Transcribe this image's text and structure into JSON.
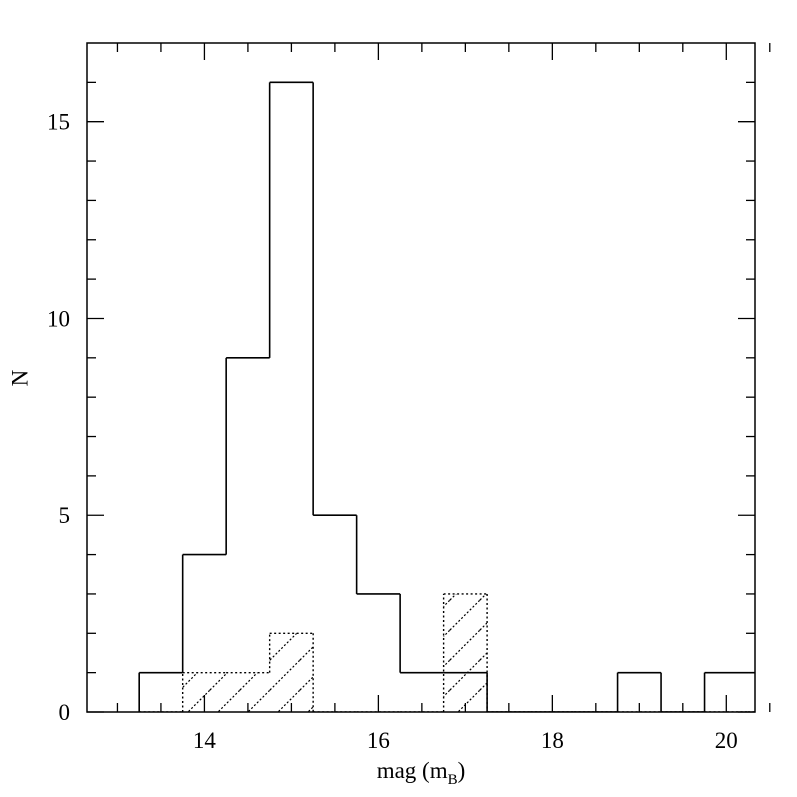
{
  "chart_data": {
    "type": "histogram",
    "xlabel": {
      "text": "mag (m",
      "subscript": "B",
      "suffix": ")"
    },
    "ylabel": "N",
    "bins": [
      13.25,
      13.75,
      14.25,
      14.75,
      15.25,
      15.75,
      16.25,
      16.75,
      17.25,
      17.75,
      18.25,
      18.75,
      19.25,
      19.75,
      20.25,
      20.75
    ],
    "series": [
      {
        "color": "#000000",
        "hatch": false,
        "values": [
          1,
          4,
          9,
          16,
          5,
          3,
          1,
          1,
          0,
          0,
          0,
          1,
          0,
          1,
          1
        ]
      },
      {
        "color": "#000000",
        "hatch": true,
        "values": [
          0,
          1,
          1,
          2,
          0,
          0,
          0,
          3,
          0,
          0,
          0,
          0,
          0,
          0,
          0
        ]
      }
    ],
    "xlim": [
      12.65,
      20.33
    ],
    "ylim": [
      0,
      17
    ],
    "xticks": [
      14,
      16,
      18,
      20
    ],
    "xminorticks": [
      13,
      13.5,
      14.5,
      15,
      15.5,
      16.5,
      17,
      17.5,
      18.5,
      19,
      19.5,
      20.5
    ],
    "yticks": [
      0,
      5,
      10,
      15
    ],
    "yminorticks": [
      1,
      2,
      3,
      4,
      6,
      7,
      8,
      9,
      11,
      12,
      13,
      14,
      16
    ]
  }
}
